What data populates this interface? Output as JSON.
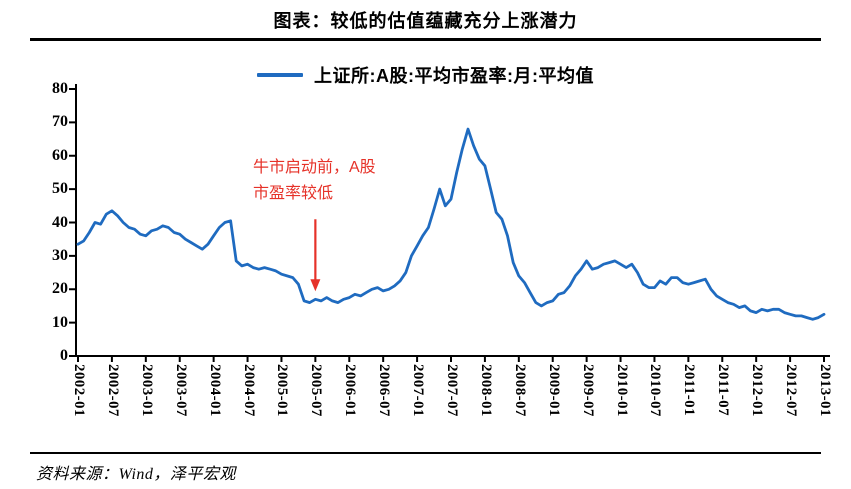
{
  "page": {
    "title": "图表：较低的估值蕴藏充分上涨潜力",
    "source": "资料来源：Wind，泽平宏观"
  },
  "legend": {
    "label": "上证所:A股:平均市盈率:月:平均值",
    "line_color": "#1f6bc0"
  },
  "annotation": {
    "line1": "牛市启动前，A股",
    "line2": "市盈率较低",
    "color": "#e63229",
    "target_month": "2005-07"
  },
  "chart_data": {
    "type": "line",
    "title": "上证所:A股:平均市盈率:月:平均值",
    "x": [
      "2002-01",
      "2002-02",
      "2002-03",
      "2002-04",
      "2002-05",
      "2002-06",
      "2002-07",
      "2002-08",
      "2002-09",
      "2002-10",
      "2002-11",
      "2002-12",
      "2003-01",
      "2003-02",
      "2003-03",
      "2003-04",
      "2003-05",
      "2003-06",
      "2003-07",
      "2003-08",
      "2003-09",
      "2003-10",
      "2003-11",
      "2003-12",
      "2004-01",
      "2004-02",
      "2004-03",
      "2004-04",
      "2004-05",
      "2004-06",
      "2004-07",
      "2004-08",
      "2004-09",
      "2004-10",
      "2004-11",
      "2004-12",
      "2005-01",
      "2005-02",
      "2005-03",
      "2005-04",
      "2005-05",
      "2005-06",
      "2005-07",
      "2005-08",
      "2005-09",
      "2005-10",
      "2005-11",
      "2005-12",
      "2006-01",
      "2006-02",
      "2006-03",
      "2006-04",
      "2006-05",
      "2006-06",
      "2006-07",
      "2006-08",
      "2006-09",
      "2006-10",
      "2006-11",
      "2006-12",
      "2007-01",
      "2007-02",
      "2007-03",
      "2007-04",
      "2007-05",
      "2007-06",
      "2007-07",
      "2007-08",
      "2007-09",
      "2007-10",
      "2007-11",
      "2007-12",
      "2008-01",
      "2008-02",
      "2008-03",
      "2008-04",
      "2008-05",
      "2008-06",
      "2008-07",
      "2008-08",
      "2008-09",
      "2008-10",
      "2008-11",
      "2008-12",
      "2009-01",
      "2009-02",
      "2009-03",
      "2009-04",
      "2009-05",
      "2009-06",
      "2009-07",
      "2009-08",
      "2009-09",
      "2009-10",
      "2009-11",
      "2009-12",
      "2010-01",
      "2010-02",
      "2010-03",
      "2010-04",
      "2010-05",
      "2010-06",
      "2010-07",
      "2010-08",
      "2010-09",
      "2010-10",
      "2010-11",
      "2010-12",
      "2011-01",
      "2011-02",
      "2011-03",
      "2011-04",
      "2011-05",
      "2011-06",
      "2011-07",
      "2011-08",
      "2011-09",
      "2011-10",
      "2011-11",
      "2011-12",
      "2012-01",
      "2012-02",
      "2012-03",
      "2012-04",
      "2012-05",
      "2012-06",
      "2012-07",
      "2012-08",
      "2012-09",
      "2012-10",
      "2012-11",
      "2012-12",
      "2013-01"
    ],
    "values": [
      33.5,
      34.5,
      37.0,
      40.0,
      39.5,
      42.5,
      43.5,
      42.0,
      40.0,
      38.5,
      38.0,
      36.5,
      36.0,
      37.5,
      38.0,
      39.0,
      38.5,
      37.0,
      36.5,
      35.0,
      34.0,
      33.0,
      32.0,
      33.5,
      36.0,
      38.5,
      40.0,
      40.5,
      28.5,
      27.0,
      27.5,
      26.5,
      26.0,
      26.5,
      26.0,
      25.5,
      24.5,
      24.0,
      23.5,
      21.5,
      16.5,
      16.0,
      17.0,
      16.5,
      17.5,
      16.5,
      16.0,
      17.0,
      17.5,
      18.5,
      18.0,
      19.0,
      20.0,
      20.5,
      19.5,
      20.0,
      21.0,
      22.5,
      25.0,
      30.0,
      33.0,
      36.0,
      38.5,
      44.0,
      50.0,
      45.0,
      47.0,
      55.0,
      62.0,
      68.0,
      63.0,
      59.0,
      57.0,
      50.0,
      43.0,
      41.0,
      36.0,
      28.0,
      24.0,
      22.0,
      19.0,
      16.0,
      15.0,
      16.0,
      16.5,
      18.5,
      19.0,
      21.0,
      24.0,
      26.0,
      28.5,
      26.0,
      26.5,
      27.5,
      28.0,
      28.5,
      27.5,
      26.5,
      27.5,
      25.0,
      21.5,
      20.5,
      20.5,
      22.5,
      21.5,
      23.5,
      23.5,
      22.0,
      21.5,
      22.0,
      22.5,
      23.0,
      20.0,
      18.0,
      17.0,
      16.0,
      15.5,
      14.5,
      15.0,
      13.5,
      13.0,
      14.0,
      13.5,
      14.0,
      14.0,
      13.0,
      12.5,
      12.0,
      12.0,
      11.5,
      11.0,
      11.5,
      12.5
    ],
    "x_tick_labels": [
      "2002-01",
      "2002-07",
      "2003-01",
      "2003-07",
      "2004-01",
      "2004-07",
      "2005-01",
      "2005-07",
      "2006-01",
      "2006-07",
      "2007-01",
      "2007-07",
      "2008-01",
      "2008-07",
      "2009-01",
      "2009-07",
      "2010-01",
      "2010-07",
      "2011-01",
      "2011-07",
      "2012-01",
      "2012-07",
      "2013-01"
    ],
    "x_tick_every": 6,
    "y_ticks": [
      0,
      10,
      20,
      30,
      40,
      50,
      60,
      70,
      80
    ],
    "ylim": [
      0,
      80
    ],
    "line_color": "#1f6bc0",
    "grid": false,
    "legend_position": "top-center"
  }
}
